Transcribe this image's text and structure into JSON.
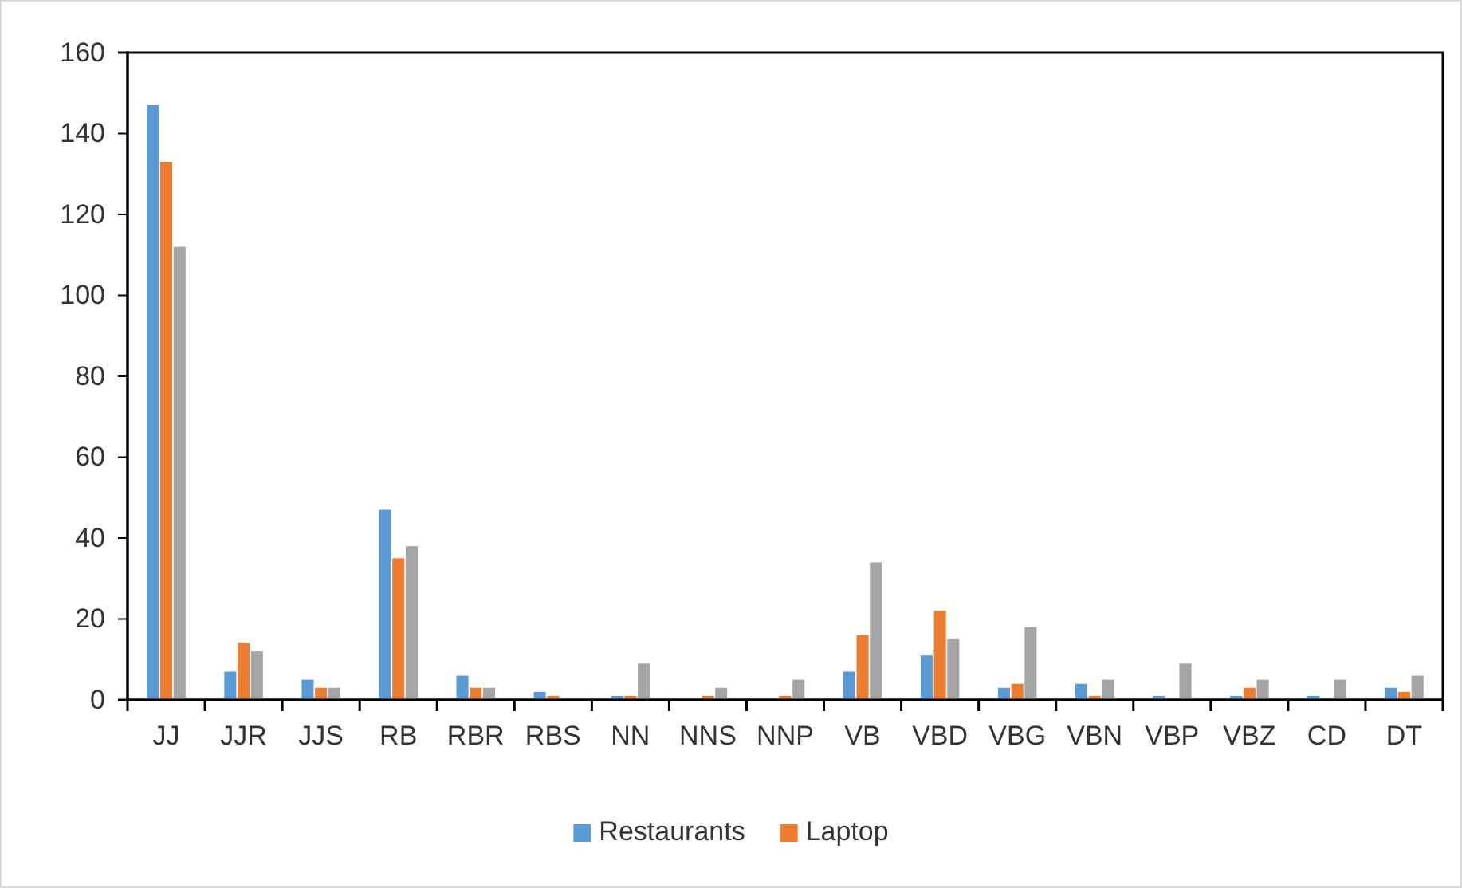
{
  "chart_data": {
    "type": "bar",
    "categories": [
      "JJ",
      "JJR",
      "JJS",
      "RB",
      "RBR",
      "RBS",
      "NN",
      "NNS",
      "NNP",
      "VB",
      "VBD",
      "VBG",
      "VBN",
      "VBP",
      "VBZ",
      "CD",
      "DT"
    ],
    "series": [
      {
        "name": "Restaurants",
        "color": "#5b9bd5",
        "values": [
          147,
          7,
          5,
          47,
          6,
          2,
          1,
          0,
          0,
          7,
          11,
          3,
          4,
          1,
          1,
          1,
          3
        ]
      },
      {
        "name": "Laptop",
        "color": "#ed7d31",
        "values": [
          133,
          14,
          3,
          35,
          3,
          1,
          1,
          1,
          1,
          16,
          22,
          4,
          1,
          0,
          3,
          0,
          2
        ]
      },
      {
        "color": "#a5a5a5",
        "values": [
          112,
          12,
          3,
          38,
          3,
          0,
          9,
          3,
          5,
          34,
          15,
          18,
          5,
          9,
          5,
          5,
          6
        ]
      }
    ],
    "ylim": [
      0,
      160
    ],
    "yticks": [
      0,
      20,
      40,
      60,
      80,
      100,
      120,
      140,
      160
    ],
    "grid": false,
    "legend": "bottom"
  }
}
